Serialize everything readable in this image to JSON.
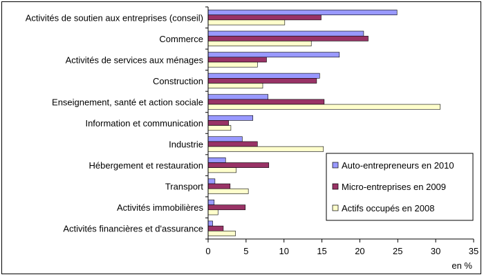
{
  "chart_data": {
    "type": "bar",
    "orientation": "horizontal",
    "categories": [
      "Activités de soutien aux entreprises (conseil)",
      "Commerce",
      "Activités de services aux ménages",
      "Construction",
      "Enseignement, santé et action sociale",
      "Information et communication",
      "Industrie",
      "Hébergement et restauration",
      "Transport",
      "Activités immobilières",
      "Activités financières et d'assurance"
    ],
    "series": [
      {
        "name": "Auto-entrepreneurs en 2010",
        "color": "#9999ff",
        "values": [
          24.9,
          20.5,
          17.3,
          14.7,
          7.9,
          5.9,
          4.5,
          2.3,
          0.9,
          0.8,
          0.6
        ]
      },
      {
        "name": "Micro-entreprises en 2009",
        "color": "#993366",
        "values": [
          14.9,
          21.1,
          7.7,
          14.3,
          15.3,
          2.7,
          6.5,
          8.0,
          2.9,
          4.9,
          2.0
        ]
      },
      {
        "name": "Actifs occupés en 2008",
        "color": "#ffffcc",
        "values": [
          10.1,
          13.6,
          6.5,
          7.2,
          30.6,
          3.0,
          15.2,
          3.7,
          5.3,
          1.3,
          3.6
        ]
      }
    ],
    "xlim": [
      0,
      35
    ],
    "xticks": [
      0,
      5,
      10,
      15,
      20,
      25,
      30,
      35
    ],
    "xunit": "en %",
    "legend_position": "right"
  }
}
